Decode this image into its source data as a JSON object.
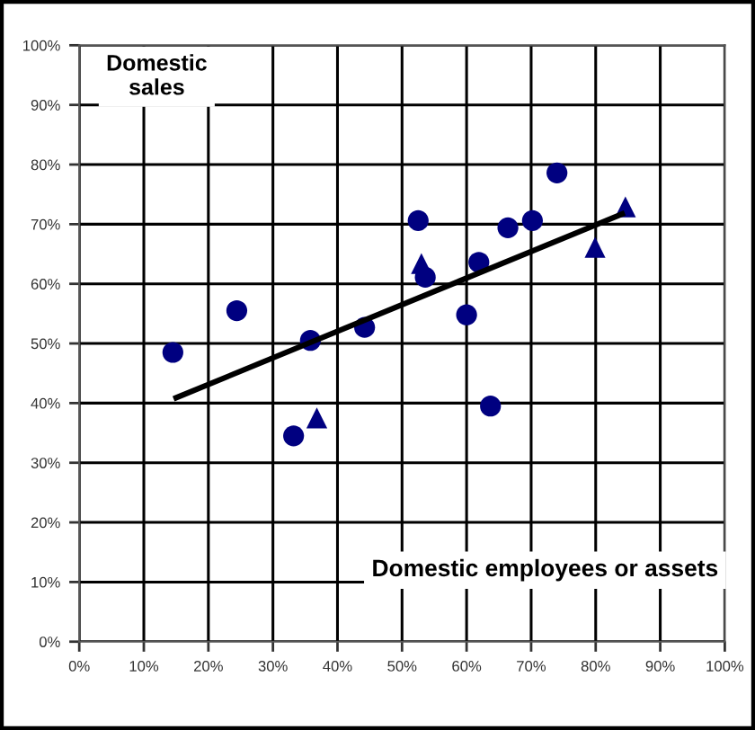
{
  "chart_data": {
    "type": "scatter",
    "xlabel": "Domestic employees or assets",
    "ylabel": "Domestic sales",
    "xlim": [
      0,
      100
    ],
    "ylim": [
      0,
      100
    ],
    "xticks": [
      {
        "value": 0,
        "label": "0%"
      },
      {
        "value": 10,
        "label": "10%"
      },
      {
        "value": 20,
        "label": "20%"
      },
      {
        "value": 30,
        "label": "30%"
      },
      {
        "value": 40,
        "label": "40%"
      },
      {
        "value": 50,
        "label": "50%"
      },
      {
        "value": 60,
        "label": "60%"
      },
      {
        "value": 70,
        "label": "70%"
      },
      {
        "value": 80,
        "label": "80%"
      },
      {
        "value": 90,
        "label": "90%"
      },
      {
        "value": 100,
        "label": "100%"
      }
    ],
    "yticks": [
      {
        "value": 0,
        "label": "0%"
      },
      {
        "value": 10,
        "label": "10%"
      },
      {
        "value": 20,
        "label": "20%"
      },
      {
        "value": 30,
        "label": "30%"
      },
      {
        "value": 40,
        "label": "40%"
      },
      {
        "value": 50,
        "label": "50%"
      },
      {
        "value": 60,
        "label": "60%"
      },
      {
        "value": 70,
        "label": "70%"
      },
      {
        "value": 80,
        "label": "80%"
      },
      {
        "value": 90,
        "label": "90%"
      },
      {
        "value": 100,
        "label": "100%"
      }
    ],
    "grid": true,
    "legend": false,
    "series": [
      {
        "marker": "circle",
        "color": "#000080",
        "x": [
          14.5,
          24.4,
          33.2,
          35.8,
          44.2,
          52.5,
          53.6,
          60.0,
          61.9,
          63.7,
          66.4,
          70.2,
          74.0
        ],
        "values": [
          48.5,
          55.5,
          34.5,
          50.5,
          52.7,
          70.6,
          61.1,
          54.8,
          63.6,
          39.5,
          69.4,
          70.6,
          78.6
        ]
      },
      {
        "marker": "triangle",
        "color": "#000080",
        "x": [
          36.8,
          53.0,
          79.9,
          84.6
        ],
        "values": [
          37.5,
          63.4,
          66.1,
          72.9
        ]
      },
      {
        "type": "line",
        "marker": "none",
        "color": "#000000",
        "x": [
          15.0,
          84.1
        ],
        "values": [
          40.9,
          71.7
        ]
      }
    ]
  }
}
